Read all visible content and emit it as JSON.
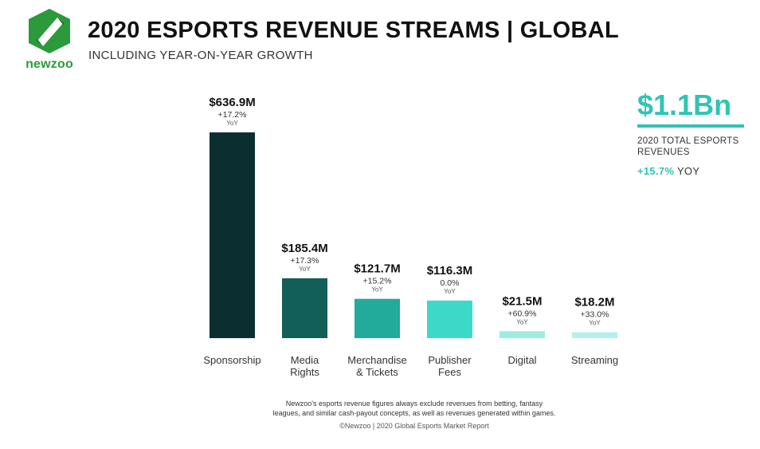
{
  "brand": {
    "name": "newzoo",
    "colors": {
      "green": "#2a9a3a",
      "dark_green": "#1b6e2a",
      "accent": "#2ec4b6"
    }
  },
  "header": {
    "title": "2020 ESPORTS REVENUE STREAMS | GLOBAL",
    "subtitle": "INCLUDING YEAR-ON-YEAR GROWTH"
  },
  "kpi": {
    "value": "$1.1Bn",
    "label_line1": "2020 TOTAL ESPORTS",
    "label_line2": "REVENUES",
    "growth_value": "+15.7%",
    "growth_unit": "YOY"
  },
  "chart_data": {
    "type": "bar",
    "title": "2020 ESPORTS REVENUE STREAMS | GLOBAL",
    "subtitle": "INCLUDING YEAR-ON-YEAR GROWTH",
    "xlabel": "",
    "ylabel": "",
    "unit": "$M",
    "ylim": [
      0,
      636.9
    ],
    "grid": false,
    "categories": [
      [
        "Sponsorship"
      ],
      [
        "Media",
        "Rights"
      ],
      [
        "Merchandise",
        "& Tickets"
      ],
      [
        "Publisher",
        "Fees"
      ],
      [
        "Digital"
      ],
      [
        "Streaming"
      ]
    ],
    "values": [
      636.9,
      185.4,
      121.7,
      116.3,
      21.5,
      18.2
    ],
    "value_labels": [
      "$636.9M",
      "$185.4M",
      "$121.7M",
      "$116.3M",
      "$21.5M",
      "$18.2M"
    ],
    "growth_labels": [
      "+17.2%",
      "+17.3%",
      "+15.2%",
      "0.0%",
      "+60.9%",
      "+33.0%"
    ],
    "growth_unit": "YoY",
    "colors": [
      "#0b2f30",
      "#125e58",
      "#22aa9a",
      "#3dd9c8",
      "#9cece2",
      "#b4f1ea"
    ]
  },
  "footer": {
    "note_line1": "Newzoo's esports revenue figures always exclude revenues from betting, fantasy",
    "note_line2": "leagues, and similar cash-payout concepts, as well as revenues generated within games.",
    "source": "©Newzoo | 2020 Global Esports Market Report"
  }
}
